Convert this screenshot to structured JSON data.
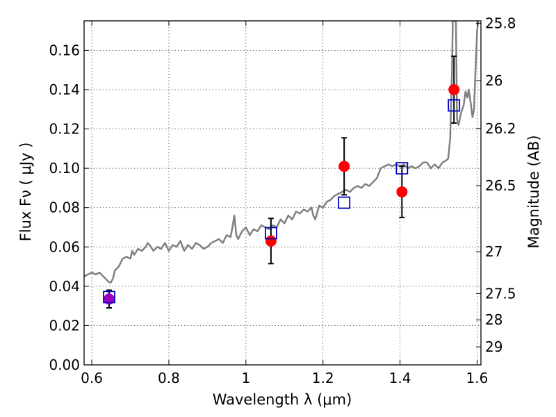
{
  "chart_data": {
    "type": "scatter",
    "xlabel": "Wavelength  λ (μm)",
    "ylabel": "Flux  Fν  ( μJy )",
    "ylabel_right": "Magnitude (AB)",
    "xlim": [
      0.58,
      1.61
    ],
    "ylim": [
      0.0,
      0.175
    ],
    "grid": true,
    "x_ticks": [
      {
        "value": 0.6,
        "label": "0.6"
      },
      {
        "value": 0.8,
        "label": "0.8"
      },
      {
        "value": 1.0,
        "label": "1"
      },
      {
        "value": 1.2,
        "label": "1.2"
      },
      {
        "value": 1.4,
        "label": "1.4"
      },
      {
        "value": 1.6,
        "label": "1.6"
      }
    ],
    "y_ticks": [
      {
        "value": 0.0,
        "label": "0.00"
      },
      {
        "value": 0.02,
        "label": "0.02"
      },
      {
        "value": 0.04,
        "label": "0.04"
      },
      {
        "value": 0.06,
        "label": "0.06"
      },
      {
        "value": 0.08,
        "label": "0.08"
      },
      {
        "value": 0.1,
        "label": "0.10"
      },
      {
        "value": 0.12,
        "label": "0.12"
      },
      {
        "value": 0.14,
        "label": "0.14"
      },
      {
        "value": 0.16,
        "label": "0.16"
      }
    ],
    "right_ticks": [
      {
        "mag": 25.8,
        "label": "25.8"
      },
      {
        "mag": 26.0,
        "label": "26"
      },
      {
        "mag": 26.2,
        "label": "26.2"
      },
      {
        "mag": 26.5,
        "label": "26.5"
      },
      {
        "mag": 27.0,
        "label": "27"
      },
      {
        "mag": 27.5,
        "label": "27.5"
      },
      {
        "mag": 28.0,
        "label": "28"
      },
      {
        "mag": 29.0,
        "label": "29"
      }
    ],
    "series": [
      {
        "kind": "line",
        "color": "#808080",
        "points": [
          [
            0.58,
            0.045
          ],
          [
            0.59,
            0.046
          ],
          [
            0.6,
            0.047
          ],
          [
            0.61,
            0.046
          ],
          [
            0.62,
            0.047
          ],
          [
            0.63,
            0.045
          ],
          [
            0.64,
            0.043
          ],
          [
            0.645,
            0.042
          ],
          [
            0.65,
            0.042
          ],
          [
            0.655,
            0.044
          ],
          [
            0.66,
            0.048
          ],
          [
            0.67,
            0.05
          ],
          [
            0.68,
            0.054
          ],
          [
            0.69,
            0.055
          ],
          [
            0.7,
            0.054
          ],
          [
            0.705,
            0.058
          ],
          [
            0.71,
            0.056
          ],
          [
            0.72,
            0.059
          ],
          [
            0.73,
            0.058
          ],
          [
            0.74,
            0.06
          ],
          [
            0.745,
            0.062
          ],
          [
            0.75,
            0.061
          ],
          [
            0.76,
            0.058
          ],
          [
            0.77,
            0.06
          ],
          [
            0.78,
            0.059
          ],
          [
            0.79,
            0.062
          ],
          [
            0.795,
            0.06
          ],
          [
            0.8,
            0.058
          ],
          [
            0.81,
            0.061
          ],
          [
            0.82,
            0.06
          ],
          [
            0.83,
            0.063
          ],
          [
            0.84,
            0.058
          ],
          [
            0.85,
            0.061
          ],
          [
            0.86,
            0.059
          ],
          [
            0.87,
            0.062
          ],
          [
            0.88,
            0.061
          ],
          [
            0.89,
            0.059
          ],
          [
            0.9,
            0.06
          ],
          [
            0.91,
            0.062
          ],
          [
            0.92,
            0.063
          ],
          [
            0.93,
            0.064
          ],
          [
            0.94,
            0.062
          ],
          [
            0.95,
            0.066
          ],
          [
            0.96,
            0.065
          ],
          [
            0.965,
            0.07
          ],
          [
            0.97,
            0.076
          ],
          [
            0.975,
            0.066
          ],
          [
            0.98,
            0.064
          ],
          [
            0.99,
            0.068
          ],
          [
            1.0,
            0.07
          ],
          [
            1.01,
            0.066
          ],
          [
            1.02,
            0.069
          ],
          [
            1.03,
            0.068
          ],
          [
            1.04,
            0.071
          ],
          [
            1.05,
            0.07
          ],
          [
            1.06,
            0.069
          ],
          [
            1.07,
            0.071
          ],
          [
            1.08,
            0.07
          ],
          [
            1.09,
            0.074
          ],
          [
            1.1,
            0.072
          ],
          [
            1.11,
            0.076
          ],
          [
            1.12,
            0.074
          ],
          [
            1.13,
            0.078
          ],
          [
            1.14,
            0.077
          ],
          [
            1.15,
            0.079
          ],
          [
            1.16,
            0.078
          ],
          [
            1.17,
            0.08
          ],
          [
            1.175,
            0.076
          ],
          [
            1.18,
            0.074
          ],
          [
            1.19,
            0.081
          ],
          [
            1.2,
            0.08
          ],
          [
            1.21,
            0.083
          ],
          [
            1.22,
            0.084
          ],
          [
            1.23,
            0.086
          ],
          [
            1.24,
            0.087
          ],
          [
            1.25,
            0.088
          ],
          [
            1.26,
            0.089
          ],
          [
            1.27,
            0.088
          ],
          [
            1.28,
            0.09
          ],
          [
            1.29,
            0.091
          ],
          [
            1.3,
            0.09
          ],
          [
            1.31,
            0.092
          ],
          [
            1.32,
            0.091
          ],
          [
            1.33,
            0.093
          ],
          [
            1.34,
            0.095
          ],
          [
            1.35,
            0.1
          ],
          [
            1.36,
            0.101
          ],
          [
            1.37,
            0.102
          ],
          [
            1.38,
            0.101
          ],
          [
            1.39,
            0.102
          ],
          [
            1.4,
            0.101
          ],
          [
            1.41,
            0.102
          ],
          [
            1.42,
            0.1
          ],
          [
            1.43,
            0.101
          ],
          [
            1.44,
            0.1
          ],
          [
            1.45,
            0.101
          ],
          [
            1.46,
            0.103
          ],
          [
            1.47,
            0.103
          ],
          [
            1.48,
            0.1
          ],
          [
            1.49,
            0.102
          ],
          [
            1.5,
            0.1
          ],
          [
            1.51,
            0.103
          ],
          [
            1.52,
            0.104
          ],
          [
            1.525,
            0.105
          ],
          [
            1.53,
            0.115
          ],
          [
            1.535,
            0.15
          ],
          [
            1.537,
            0.175
          ],
          [
            1.545,
            0.175
          ],
          [
            1.548,
            0.125
          ],
          [
            1.552,
            0.122
          ],
          [
            1.558,
            0.128
          ],
          [
            1.565,
            0.132
          ],
          [
            1.57,
            0.139
          ],
          [
            1.575,
            0.136
          ],
          [
            1.578,
            0.14
          ],
          [
            1.583,
            0.134
          ],
          [
            1.588,
            0.126
          ],
          [
            1.592,
            0.13
          ],
          [
            1.596,
            0.15
          ],
          [
            1.6,
            0.17
          ],
          [
            1.603,
            0.175
          ]
        ]
      },
      {
        "kind": "points_with_errorbars",
        "color": "#ff0000",
        "marker": "circle",
        "points": [
          {
            "x": 1.065,
            "y": 0.063,
            "yerr": 0.0115
          },
          {
            "x": 1.255,
            "y": 0.101,
            "yerr": 0.0145
          },
          {
            "x": 1.405,
            "y": 0.088,
            "yerr": 0.013
          },
          {
            "x": 1.54,
            "y": 0.14,
            "yerr": 0.017
          }
        ]
      },
      {
        "kind": "points_with_errorbars",
        "color": "#a000c0",
        "marker": "circle",
        "points": [
          {
            "x": 0.645,
            "y": 0.0335,
            "yerr": 0.0045
          }
        ]
      },
      {
        "kind": "points",
        "color": "#0000c8",
        "marker": "open-square",
        "points": [
          {
            "x": 0.645,
            "y": 0.0345
          },
          {
            "x": 1.065,
            "y": 0.067
          },
          {
            "x": 1.255,
            "y": 0.0825
          },
          {
            "x": 1.405,
            "y": 0.1
          },
          {
            "x": 1.54,
            "y": 0.132
          }
        ]
      }
    ]
  }
}
